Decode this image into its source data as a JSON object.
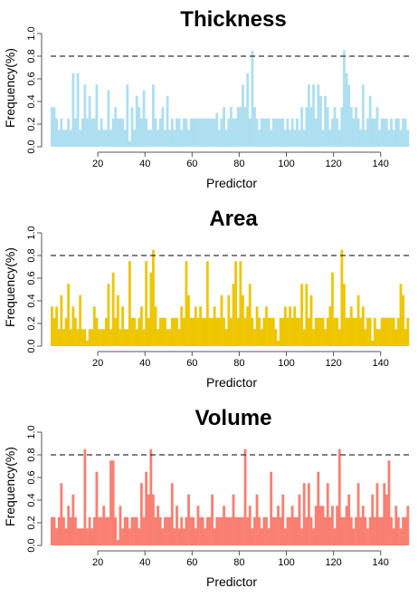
{
  "chart_data": [
    {
      "type": "bar",
      "title": "Thickness",
      "xlabel": "Predictor",
      "ylabel": "Frequency(%)",
      "color": "#ADDFF0",
      "xlim": [
        0,
        152
      ],
      "ylim": [
        0,
        1.0
      ],
      "xticks": [
        20,
        40,
        60,
        80,
        100,
        120,
        140
      ],
      "yticks": [
        0.0,
        0.2,
        0.4,
        0.6,
        0.8,
        1.0
      ],
      "reference_line": 0.8,
      "x": [
        1,
        2,
        3,
        4,
        5,
        6,
        7,
        8,
        9,
        10,
        11,
        12,
        13,
        14,
        15,
        16,
        17,
        18,
        19,
        20,
        21,
        22,
        23,
        24,
        25,
        26,
        27,
        28,
        29,
        30,
        31,
        32,
        33,
        34,
        35,
        36,
        37,
        38,
        39,
        40,
        41,
        42,
        43,
        44,
        45,
        46,
        47,
        48,
        49,
        50,
        51,
        52,
        53,
        54,
        55,
        56,
        57,
        58,
        59,
        60,
        61,
        62,
        63,
        64,
        65,
        66,
        67,
        68,
        69,
        70,
        71,
        72,
        73,
        74,
        75,
        76,
        77,
        78,
        79,
        80,
        81,
        82,
        83,
        84,
        85,
        86,
        87,
        88,
        89,
        90,
        91,
        92,
        93,
        94,
        95,
        96,
        97,
        98,
        99,
        100,
        101,
        102,
        103,
        104,
        105,
        106,
        107,
        108,
        109,
        110,
        111,
        112,
        113,
        114,
        115,
        116,
        117,
        118,
        119,
        120,
        121,
        122,
        123,
        124,
        125,
        126,
        127,
        128,
        129,
        130,
        131,
        132,
        133,
        134,
        135,
        136,
        137,
        138,
        139,
        140,
        141,
        142,
        143,
        144,
        145,
        146,
        147,
        148,
        149,
        150,
        151,
        152
      ],
      "values": [
        0.35,
        0.35,
        0.25,
        0.15,
        0.25,
        0.15,
        0.15,
        0.25,
        0.15,
        0.65,
        0.25,
        0.65,
        0.15,
        0.25,
        0.55,
        0.25,
        0.45,
        0.25,
        0.25,
        0.55,
        0.15,
        0.25,
        0.15,
        0.15,
        0.5,
        0.15,
        0.25,
        0.35,
        0.25,
        0.25,
        0.25,
        0.15,
        0.55,
        0.05,
        0.35,
        0.15,
        0.45,
        0.35,
        0.25,
        0.5,
        0.25,
        0.15,
        0.15,
        0.55,
        0.25,
        0.15,
        0.25,
        0.35,
        0.15,
        0.45,
        0.15,
        0.25,
        0.15,
        0.25,
        0.25,
        0.15,
        0.25,
        0.25,
        0.15,
        0.25,
        0.25,
        0.25,
        0.25,
        0.25,
        0.25,
        0.25,
        0.25,
        0.25,
        0.25,
        0.25,
        0.3,
        0.15,
        0.25,
        0.35,
        0.15,
        0.25,
        0.35,
        0.25,
        0.25,
        0.35,
        0.35,
        0.55,
        0.35,
        0.65,
        0.25,
        0.85,
        0.35,
        0.25,
        0.15,
        0.25,
        0.25,
        0.25,
        0.25,
        0.15,
        0.25,
        0.25,
        0.25,
        0.25,
        0.25,
        0.15,
        0.25,
        0.15,
        0.25,
        0.15,
        0.25,
        0.15,
        0.35,
        0.15,
        0.35,
        0.55,
        0.35,
        0.55,
        0.25,
        0.55,
        0.45,
        0.15,
        0.45,
        0.35,
        0.15,
        0.25,
        0.35,
        0.25,
        0.15,
        0.35,
        0.85,
        0.65,
        0.55,
        0.35,
        0.25,
        0.35,
        0.25,
        0.15,
        0.55,
        0.15,
        0.25,
        0.45,
        0.25,
        0.25,
        0.35,
        0.15,
        0.25,
        0.25,
        0.25,
        0.15,
        0.25,
        0.15,
        0.25,
        0.25,
        0.15,
        0.25,
        0.25,
        0.15
      ]
    },
    {
      "type": "bar",
      "title": "Area",
      "xlabel": "Predictor",
      "ylabel": "Frequency(%)",
      "color": "#EEC600",
      "xlim": [
        0,
        152
      ],
      "ylim": [
        0,
        1.0
      ],
      "xticks": [
        20,
        40,
        60,
        80,
        100,
        120,
        140
      ],
      "yticks": [
        0.0,
        0.2,
        0.4,
        0.6,
        0.8,
        1.0
      ],
      "reference_line": 0.8,
      "x": [
        1,
        2,
        3,
        4,
        5,
        6,
        7,
        8,
        9,
        10,
        11,
        12,
        13,
        14,
        15,
        16,
        17,
        18,
        19,
        20,
        21,
        22,
        23,
        24,
        25,
        26,
        27,
        28,
        29,
        30,
        31,
        32,
        33,
        34,
        35,
        36,
        37,
        38,
        39,
        40,
        41,
        42,
        43,
        44,
        45,
        46,
        47,
        48,
        49,
        50,
        51,
        52,
        53,
        54,
        55,
        56,
        57,
        58,
        59,
        60,
        61,
        62,
        63,
        64,
        65,
        66,
        67,
        68,
        69,
        70,
        71,
        72,
        73,
        74,
        75,
        76,
        77,
        78,
        79,
        80,
        81,
        82,
        83,
        84,
        85,
        86,
        87,
        88,
        89,
        90,
        91,
        92,
        93,
        94,
        95,
        96,
        97,
        98,
        99,
        100,
        101,
        102,
        103,
        104,
        105,
        106,
        107,
        108,
        109,
        110,
        111,
        112,
        113,
        114,
        115,
        116,
        117,
        118,
        119,
        120,
        121,
        122,
        123,
        124,
        125,
        126,
        127,
        128,
        129,
        130,
        131,
        132,
        133,
        134,
        135,
        136,
        137,
        138,
        139,
        140,
        141,
        142,
        143,
        144,
        145,
        146,
        147,
        148,
        149,
        150,
        151,
        152
      ],
      "values": [
        0.35,
        0.25,
        0.35,
        0.15,
        0.45,
        0.15,
        0.25,
        0.55,
        0.15,
        0.35,
        0.25,
        0.15,
        0.45,
        0.15,
        0.15,
        0.05,
        0.15,
        0.15,
        0.35,
        0.25,
        0.15,
        0.15,
        0.15,
        0.25,
        0.55,
        0.15,
        0.65,
        0.25,
        0.45,
        0.15,
        0.35,
        0.15,
        0.15,
        0.75,
        0.25,
        0.25,
        0.15,
        0.25,
        0.35,
        0.15,
        0.75,
        0.25,
        0.65,
        0.85,
        0.35,
        0.15,
        0.25,
        0.25,
        0.25,
        0.15,
        0.15,
        0.25,
        0.25,
        0.25,
        0.15,
        0.35,
        0.25,
        0.75,
        0.45,
        0.25,
        0.25,
        0.35,
        0.25,
        0.35,
        0.25,
        0.25,
        0.75,
        0.25,
        0.25,
        0.35,
        0.25,
        0.25,
        0.45,
        0.25,
        0.15,
        0.45,
        0.25,
        0.55,
        0.75,
        0.25,
        0.75,
        0.45,
        0.25,
        0.35,
        0.55,
        0.25,
        0.15,
        0.35,
        0.25,
        0.15,
        0.25,
        0.35,
        0.25,
        0.25,
        0.25,
        0.15,
        0.05,
        0.25,
        0.25,
        0.35,
        0.25,
        0.35,
        0.25,
        0.35,
        0.25,
        0.25,
        0.55,
        0.15,
        0.55,
        0.25,
        0.45,
        0.15,
        0.25,
        0.25,
        0.25,
        0.25,
        0.15,
        0.25,
        0.35,
        0.65,
        0.25,
        0.25,
        0.15,
        0.85,
        0.55,
        0.25,
        0.25,
        0.35,
        0.25,
        0.25,
        0.45,
        0.25,
        0.35,
        0.15,
        0.25,
        0.25,
        0.05,
        0.25,
        0.15,
        0.15,
        0.25,
        0.25,
        0.25,
        0.25,
        0.25,
        0.25,
        0.15,
        0.25,
        0.55,
        0.45,
        0.15,
        0.25
      ]
    },
    {
      "type": "bar",
      "title": "Volume",
      "xlabel": "Predictor",
      "ylabel": "Frequency(%)",
      "color": "#F87F71",
      "xlim": [
        0,
        152
      ],
      "ylim": [
        0,
        1.0
      ],
      "xticks": [
        20,
        40,
        60,
        80,
        100,
        120,
        140
      ],
      "yticks": [
        0.0,
        0.2,
        0.4,
        0.6,
        0.8,
        1.0
      ],
      "reference_line": 0.8,
      "x": [
        1,
        2,
        3,
        4,
        5,
        6,
        7,
        8,
        9,
        10,
        11,
        12,
        13,
        14,
        15,
        16,
        17,
        18,
        19,
        20,
        21,
        22,
        23,
        24,
        25,
        26,
        27,
        28,
        29,
        30,
        31,
        32,
        33,
        34,
        35,
        36,
        37,
        38,
        39,
        40,
        41,
        42,
        43,
        44,
        45,
        46,
        47,
        48,
        49,
        50,
        51,
        52,
        53,
        54,
        55,
        56,
        57,
        58,
        59,
        60,
        61,
        62,
        63,
        64,
        65,
        66,
        67,
        68,
        69,
        70,
        71,
        72,
        73,
        74,
        75,
        76,
        77,
        78,
        79,
        80,
        81,
        82,
        83,
        84,
        85,
        86,
        87,
        88,
        89,
        90,
        91,
        92,
        93,
        94,
        95,
        96,
        97,
        98,
        99,
        100,
        101,
        102,
        103,
        104,
        105,
        106,
        107,
        108,
        109,
        110,
        111,
        112,
        113,
        114,
        115,
        116,
        117,
        118,
        119,
        120,
        121,
        122,
        123,
        124,
        125,
        126,
        127,
        128,
        129,
        130,
        131,
        132,
        133,
        134,
        135,
        136,
        137,
        138,
        139,
        140,
        141,
        142,
        143,
        144,
        145,
        146,
        147,
        148,
        149,
        150,
        151,
        152
      ],
      "values": [
        0.25,
        0.25,
        0.15,
        0.25,
        0.55,
        0.25,
        0.15,
        0.35,
        0.25,
        0.45,
        0.25,
        0.15,
        0.15,
        0.15,
        0.85,
        0.15,
        0.25,
        0.15,
        0.25,
        0.65,
        0.25,
        0.25,
        0.35,
        0.25,
        0.25,
        0.75,
        0.75,
        0.25,
        0.05,
        0.35,
        0.15,
        0.25,
        0.25,
        0.15,
        0.25,
        0.25,
        0.25,
        0.15,
        0.55,
        0.25,
        0.65,
        0.45,
        0.85,
        0.45,
        0.25,
        0.35,
        0.25,
        0.15,
        0.25,
        0.25,
        0.25,
        0.55,
        0.15,
        0.35,
        0.15,
        0.25,
        0.15,
        0.25,
        0.45,
        0.25,
        0.25,
        0.15,
        0.35,
        0.25,
        0.25,
        0.15,
        0.25,
        0.25,
        0.45,
        0.15,
        0.25,
        0.25,
        0.25,
        0.35,
        0.25,
        0.25,
        0.25,
        0.45,
        0.25,
        0.25,
        0.25,
        0.25,
        0.85,
        0.25,
        0.35,
        0.15,
        0.25,
        0.45,
        0.25,
        0.15,
        0.25,
        0.25,
        0.15,
        0.65,
        0.25,
        0.25,
        0.35,
        0.25,
        0.45,
        0.15,
        0.25,
        0.25,
        0.35,
        0.25,
        0.25,
        0.45,
        0.15,
        0.55,
        0.25,
        0.55,
        0.25,
        0.15,
        0.35,
        0.65,
        0.35,
        0.35,
        0.25,
        0.55,
        0.25,
        0.35,
        0.15,
        0.35,
        0.85,
        0.25,
        0.25,
        0.35,
        0.45,
        0.25,
        0.15,
        0.25,
        0.55,
        0.25,
        0.35,
        0.25,
        0.15,
        0.25,
        0.45,
        0.25,
        0.55,
        0.25,
        0.25,
        0.55,
        0.45,
        0.75,
        0.25,
        0.15,
        0.35,
        0.25,
        0.15,
        0.25,
        0.25,
        0.35
      ]
    }
  ]
}
